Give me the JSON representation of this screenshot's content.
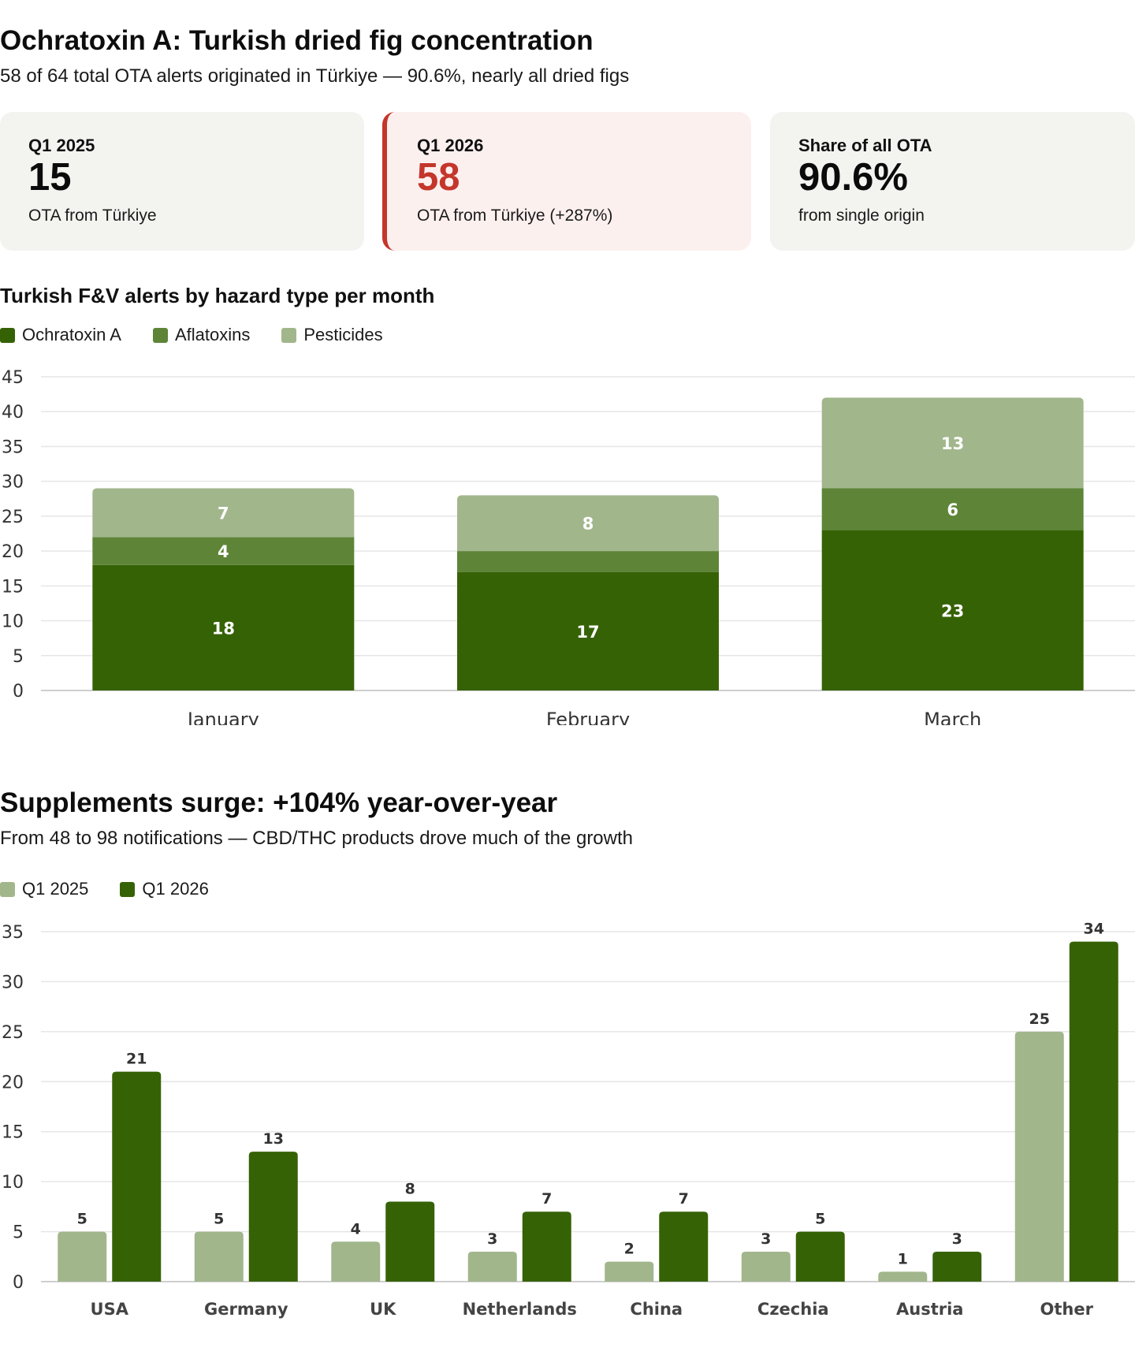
{
  "section1": {
    "title": "Ochratoxin A: Turkish dried fig concentration",
    "subtitle": "58 of 64 total OTA alerts originated in Türkiye — 90.6%, nearly all dried figs"
  },
  "cards": [
    {
      "label": "Q1 2025",
      "value": "15",
      "desc": "OTA from Türkiye"
    },
    {
      "label": "Q1 2026",
      "value": "58",
      "desc": "OTA from Türkiye (+287%)"
    },
    {
      "label": "Share of all OTA",
      "value": "90.6%",
      "desc": "from single origin"
    }
  ],
  "colors": {
    "dark_green": "#366206",
    "mid_green": "#5e8537",
    "light_green": "#a2b68c",
    "alert_red": "#c4362b",
    "card_bg": "#f3f4f0",
    "alert_card_bg": "#fcf0ef"
  },
  "section2": {
    "title": "Supplements surge: +104% year-over-year",
    "subtitle": "From 48 to 98 notifications — CBD/THC products drove much of the growth"
  },
  "chart_data": [
    {
      "type": "bar",
      "stacked": true,
      "title": "Turkish F&V alerts by hazard type per month",
      "categories": [
        "January",
        "February",
        "March"
      ],
      "series": [
        {
          "name": "Ochratoxin A",
          "values": [
            18,
            17,
            23
          ],
          "color": "#366206"
        },
        {
          "name": "Aflatoxins",
          "values": [
            4,
            3,
            6
          ],
          "color": "#5e8537"
        },
        {
          "name": "Pesticides",
          "values": [
            7,
            8,
            13
          ],
          "color": "#a2b68c"
        }
      ],
      "data_labels": [
        [
          "18",
          "17",
          "23"
        ],
        [
          "4",
          "",
          "6"
        ],
        [
          "7",
          "8",
          "13"
        ]
      ],
      "ylim": [
        0,
        45
      ],
      "yticks": [
        0,
        5,
        10,
        15,
        20,
        25,
        30,
        35,
        40,
        45
      ],
      "grid": true,
      "legend": "top-left"
    },
    {
      "type": "bar",
      "stacked": false,
      "categories": [
        "USA",
        "Germany",
        "UK",
        "Netherlands",
        "China",
        "Czechia",
        "Austria",
        "Other"
      ],
      "series": [
        {
          "name": "Q1 2025",
          "values": [
            5,
            5,
            4,
            3,
            2,
            3,
            1,
            25
          ],
          "color": "#a2b68c"
        },
        {
          "name": "Q1 2026",
          "values": [
            21,
            13,
            8,
            7,
            7,
            5,
            3,
            34
          ],
          "color": "#366206"
        }
      ],
      "ylim": [
        0,
        35
      ],
      "yticks": [
        0,
        5,
        10,
        15,
        20,
        25,
        30,
        35
      ],
      "grid": true,
      "legend": "top-left"
    }
  ]
}
